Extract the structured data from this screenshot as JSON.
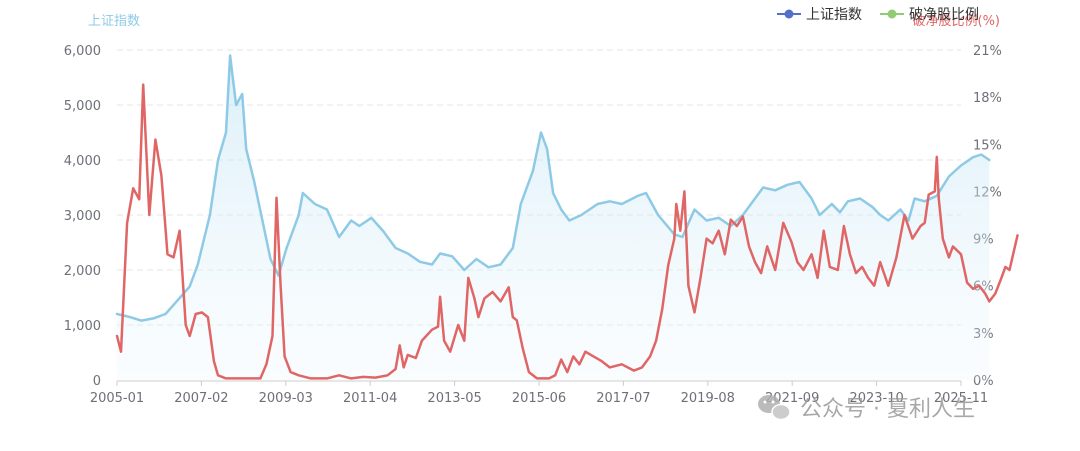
{
  "chart_data": {
    "type": "line",
    "x_tick_labels": [
      "2005-01",
      "2007-02",
      "2009-03",
      "2011-04",
      "2013-05",
      "2015-06",
      "2017-07",
      "2019-08",
      "2021-09",
      "2023-10",
      "2025-11"
    ],
    "y_left": {
      "name": "上证指数",
      "min": 0,
      "max": 6000,
      "ticks": [
        "0",
        "1,000",
        "2,000",
        "3,000",
        "4,000",
        "5,000",
        "6,000"
      ],
      "color": "#8ecae6"
    },
    "y_right": {
      "name": "破净股比例(%)",
      "min": 0,
      "max": 21,
      "ticks": [
        "0%",
        "3%",
        "6%",
        "9%",
        "12%",
        "15%",
        "18%",
        "21%"
      ],
      "color": "#e06666"
    },
    "legend": {
      "position": "top-right",
      "items": [
        {
          "label": "上证指数",
          "marker_color": "#5470c6"
        },
        {
          "label": "破净股比例",
          "marker_color": "#91cc75"
        }
      ]
    },
    "grid": "horizontal-dashed",
    "series": [
      {
        "name": "上证指数",
        "axis": "left",
        "color": "#8ecae6",
        "area": true,
        "points": [
          [
            2005.0,
            1200
          ],
          [
            2005.3,
            1150
          ],
          [
            2005.6,
            1080
          ],
          [
            2005.9,
            1120
          ],
          [
            2006.2,
            1200
          ],
          [
            2006.5,
            1450
          ],
          [
            2006.8,
            1700
          ],
          [
            2007.0,
            2100
          ],
          [
            2007.3,
            3000
          ],
          [
            2007.5,
            4000
          ],
          [
            2007.7,
            4500
          ],
          [
            2007.8,
            5900
          ],
          [
            2007.95,
            5000
          ],
          [
            2008.1,
            5200
          ],
          [
            2008.2,
            4200
          ],
          [
            2008.4,
            3600
          ],
          [
            2008.6,
            2900
          ],
          [
            2008.8,
            2200
          ],
          [
            2009.0,
            1900
          ],
          [
            2009.2,
            2400
          ],
          [
            2009.5,
            3000
          ],
          [
            2009.6,
            3400
          ],
          [
            2009.9,
            3200
          ],
          [
            2010.2,
            3100
          ],
          [
            2010.5,
            2600
          ],
          [
            2010.8,
            2900
          ],
          [
            2011.0,
            2800
          ],
          [
            2011.3,
            2950
          ],
          [
            2011.6,
            2700
          ],
          [
            2011.9,
            2400
          ],
          [
            2012.2,
            2300
          ],
          [
            2012.5,
            2150
          ],
          [
            2012.8,
            2100
          ],
          [
            2013.0,
            2300
          ],
          [
            2013.3,
            2250
          ],
          [
            2013.6,
            2000
          ],
          [
            2013.9,
            2200
          ],
          [
            2014.2,
            2050
          ],
          [
            2014.5,
            2100
          ],
          [
            2014.8,
            2400
          ],
          [
            2015.0,
            3200
          ],
          [
            2015.3,
            3800
          ],
          [
            2015.5,
            4500
          ],
          [
            2015.65,
            4200
          ],
          [
            2015.8,
            3400
          ],
          [
            2016.0,
            3100
          ],
          [
            2016.2,
            2900
          ],
          [
            2016.5,
            3000
          ],
          [
            2016.9,
            3200
          ],
          [
            2017.2,
            3250
          ],
          [
            2017.5,
            3200
          ],
          [
            2017.9,
            3350
          ],
          [
            2018.1,
            3400
          ],
          [
            2018.4,
            3000
          ],
          [
            2018.8,
            2650
          ],
          [
            2019.0,
            2600
          ],
          [
            2019.3,
            3100
          ],
          [
            2019.6,
            2900
          ],
          [
            2019.9,
            2950
          ],
          [
            2020.2,
            2800
          ],
          [
            2020.5,
            3000
          ],
          [
            2020.8,
            3300
          ],
          [
            2021.0,
            3500
          ],
          [
            2021.3,
            3450
          ],
          [
            2021.6,
            3550
          ],
          [
            2021.9,
            3600
          ],
          [
            2022.2,
            3300
          ],
          [
            2022.4,
            3000
          ],
          [
            2022.7,
            3200
          ],
          [
            2022.9,
            3050
          ],
          [
            2023.1,
            3250
          ],
          [
            2023.4,
            3300
          ],
          [
            2023.7,
            3150
          ],
          [
            2023.9,
            3000
          ],
          [
            2024.1,
            2900
          ],
          [
            2024.4,
            3100
          ],
          [
            2024.6,
            2900
          ],
          [
            2024.75,
            3300
          ],
          [
            2025.0,
            3250
          ],
          [
            2025.3,
            3350
          ],
          [
            2025.6,
            3700
          ],
          [
            2025.9,
            3900
          ],
          [
            2026.2,
            4050
          ],
          [
            2026.4,
            4100
          ],
          [
            2026.6,
            4000
          ]
        ]
      },
      {
        "name": "破净股比例",
        "axis": "right",
        "color": "#e06666",
        "area": false,
        "points": [
          [
            2005.0,
            2.8
          ],
          [
            2005.1,
            1.8
          ],
          [
            2005.25,
            10.0
          ],
          [
            2005.4,
            12.2
          ],
          [
            2005.55,
            11.5
          ],
          [
            2005.65,
            18.8
          ],
          [
            2005.8,
            10.5
          ],
          [
            2005.95,
            15.3
          ],
          [
            2006.1,
            13.0
          ],
          [
            2006.25,
            8.0
          ],
          [
            2006.4,
            7.8
          ],
          [
            2006.55,
            9.5
          ],
          [
            2006.7,
            3.5
          ],
          [
            2006.8,
            2.8
          ],
          [
            2006.95,
            4.2
          ],
          [
            2007.1,
            4.3
          ],
          [
            2007.25,
            4.0
          ],
          [
            2007.4,
            1.2
          ],
          [
            2007.5,
            0.3
          ],
          [
            2007.7,
            0.1
          ],
          [
            2008.0,
            0.1
          ],
          [
            2008.3,
            0.1
          ],
          [
            2008.55,
            0.1
          ],
          [
            2008.7,
            1.0
          ],
          [
            2008.85,
            2.8
          ],
          [
            2008.95,
            11.6
          ],
          [
            2009.05,
            6.0
          ],
          [
            2009.15,
            1.5
          ],
          [
            2009.3,
            0.5
          ],
          [
            2009.5,
            0.3
          ],
          [
            2009.8,
            0.1
          ],
          [
            2010.2,
            0.1
          ],
          [
            2010.5,
            0.3
          ],
          [
            2010.8,
            0.1
          ],
          [
            2011.1,
            0.2
          ],
          [
            2011.4,
            0.15
          ],
          [
            2011.7,
            0.3
          ],
          [
            2011.9,
            0.7
          ],
          [
            2012.0,
            2.2
          ],
          [
            2012.1,
            0.8
          ],
          [
            2012.2,
            1.6
          ],
          [
            2012.4,
            1.4
          ],
          [
            2012.55,
            2.5
          ],
          [
            2012.8,
            3.2
          ],
          [
            2012.95,
            3.4
          ],
          [
            2013.0,
            5.3
          ],
          [
            2013.1,
            2.5
          ],
          [
            2013.25,
            1.8
          ],
          [
            2013.45,
            3.5
          ],
          [
            2013.6,
            2.5
          ],
          [
            2013.7,
            6.5
          ],
          [
            2013.85,
            5.2
          ],
          [
            2013.95,
            4.0
          ],
          [
            2014.1,
            5.2
          ],
          [
            2014.3,
            5.6
          ],
          [
            2014.5,
            5.0
          ],
          [
            2014.7,
            5.9
          ],
          [
            2014.8,
            4.0
          ],
          [
            2014.9,
            3.8
          ],
          [
            2015.05,
            2.0
          ],
          [
            2015.2,
            0.5
          ],
          [
            2015.4,
            0.1
          ],
          [
            2015.7,
            0.1
          ],
          [
            2015.85,
            0.3
          ],
          [
            2016.0,
            1.3
          ],
          [
            2016.15,
            0.5
          ],
          [
            2016.3,
            1.5
          ],
          [
            2016.45,
            1.0
          ],
          [
            2016.6,
            1.8
          ],
          [
            2016.8,
            1.5
          ],
          [
            2017.0,
            1.2
          ],
          [
            2017.2,
            0.8
          ],
          [
            2017.5,
            1.0
          ],
          [
            2017.8,
            0.6
          ],
          [
            2018.0,
            0.8
          ],
          [
            2018.2,
            1.5
          ],
          [
            2018.35,
            2.5
          ],
          [
            2018.5,
            4.5
          ],
          [
            2018.65,
            7.3
          ],
          [
            2018.8,
            9.0
          ],
          [
            2018.85,
            11.2
          ],
          [
            2018.95,
            9.5
          ],
          [
            2019.05,
            12.0
          ],
          [
            2019.15,
            6.0
          ],
          [
            2019.3,
            4.3
          ],
          [
            2019.45,
            6.5
          ],
          [
            2019.6,
            9.0
          ],
          [
            2019.75,
            8.7
          ],
          [
            2019.9,
            9.5
          ],
          [
            2020.05,
            8.0
          ],
          [
            2020.2,
            10.2
          ],
          [
            2020.35,
            9.8
          ],
          [
            2020.5,
            10.4
          ],
          [
            2020.65,
            8.5
          ],
          [
            2020.8,
            7.5
          ],
          [
            2020.95,
            6.8
          ],
          [
            2021.1,
            8.5
          ],
          [
            2021.3,
            7.0
          ],
          [
            2021.5,
            10.0
          ],
          [
            2021.7,
            8.8
          ],
          [
            2021.85,
            7.5
          ],
          [
            2022.0,
            7.0
          ],
          [
            2022.2,
            8.0
          ],
          [
            2022.35,
            6.5
          ],
          [
            2022.5,
            9.5
          ],
          [
            2022.65,
            7.2
          ],
          [
            2022.85,
            7.0
          ],
          [
            2023.0,
            9.8
          ],
          [
            2023.15,
            8.0
          ],
          [
            2023.3,
            6.8
          ],
          [
            2023.45,
            7.2
          ],
          [
            2023.6,
            6.5
          ],
          [
            2023.75,
            6.0
          ],
          [
            2023.9,
            7.5
          ],
          [
            2024.1,
            6.0
          ],
          [
            2024.3,
            7.8
          ],
          [
            2024.5,
            10.5
          ],
          [
            2024.7,
            9.0
          ],
          [
            2024.9,
            9.8
          ],
          [
            2025.0,
            10.0
          ],
          [
            2025.1,
            11.8
          ],
          [
            2025.25,
            12.0
          ],
          [
            2025.3,
            14.2
          ],
          [
            2025.35,
            11.5
          ],
          [
            2025.45,
            9.0
          ],
          [
            2025.6,
            7.8
          ],
          [
            2025.7,
            8.5
          ],
          [
            2025.9,
            8.0
          ],
          [
            2026.05,
            6.2
          ],
          [
            2026.2,
            5.8
          ],
          [
            2026.35,
            6.0
          ],
          [
            2026.5,
            5.5
          ],
          [
            2026.6,
            5.0
          ],
          [
            2026.75,
            5.5
          ],
          [
            2026.9,
            6.5
          ],
          [
            2027.0,
            7.2
          ],
          [
            2027.1,
            7.0
          ],
          [
            2027.3,
            9.2
          ]
        ]
      }
    ]
  },
  "watermark": "公众号 · 夏利人生",
  "watermark_icon": "wechat-icon"
}
